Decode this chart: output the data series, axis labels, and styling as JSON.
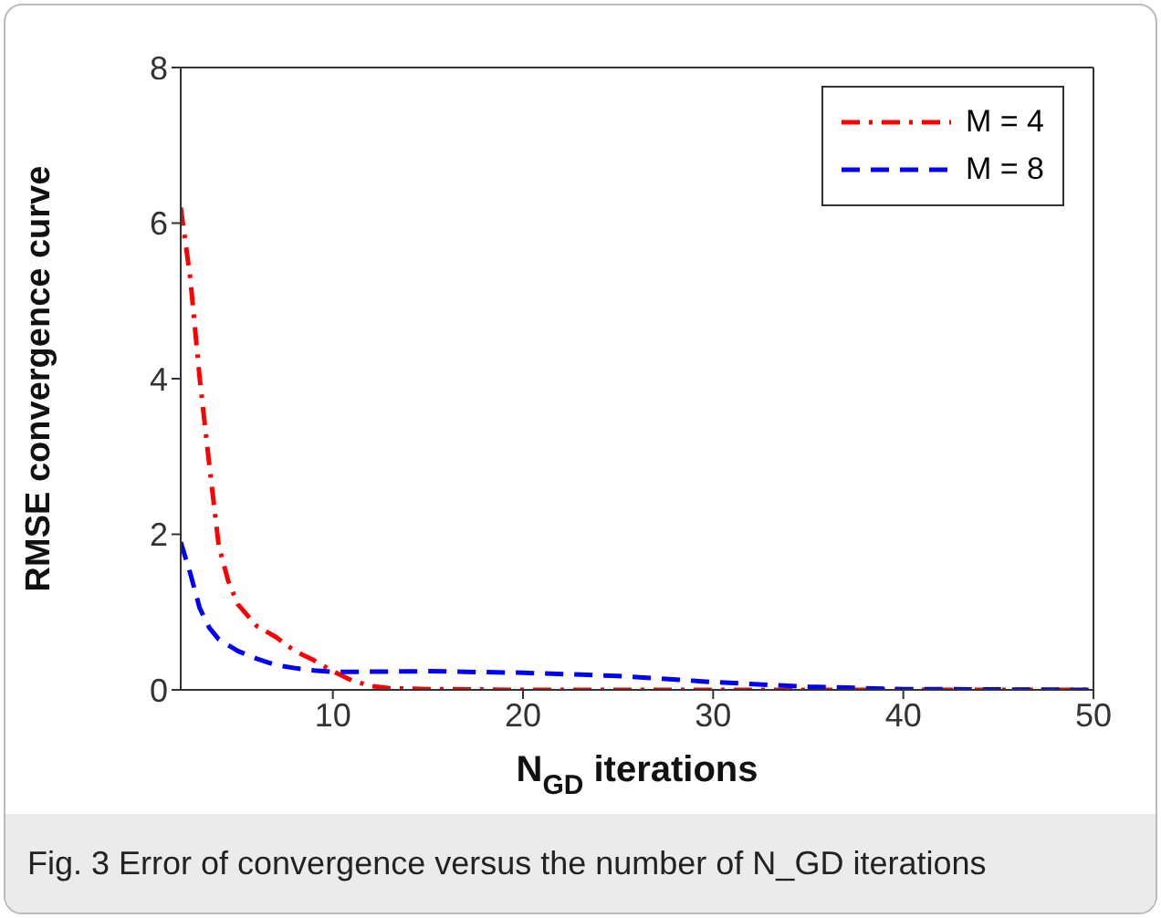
{
  "chart_data": {
    "type": "line",
    "xlabel": "N$_{GD}$ iterations",
    "ylabel": "RMSE convergence curve",
    "annotations": [
      "Fig. 3 Error of convergence versus the number of N_GD iterations"
    ],
    "xlim": [
      2,
      50
    ],
    "xticks": [
      10,
      20,
      30,
      40,
      50
    ],
    "ylim": [
      0,
      8
    ],
    "yticks": [
      0,
      2,
      4,
      6,
      8
    ],
    "grid": false,
    "legend": "top right",
    "marker": "none",
    "series": [
      {
        "name": "M = 4",
        "color": "#ff0000",
        "line_style": "dashdot",
        "x": [
          2,
          2.5,
          3,
          3.5,
          4,
          4.5,
          5,
          6,
          7,
          8,
          9,
          10,
          11,
          12,
          13,
          15,
          20,
          30,
          40,
          50
        ],
        "values": [
          6.2,
          5.3,
          4.0,
          2.9,
          1.85,
          1.4,
          1.1,
          0.82,
          0.68,
          0.5,
          0.38,
          0.24,
          0.12,
          0.05,
          0.02,
          0.01,
          0,
          0,
          0,
          0
        ]
      },
      {
        "name": "M = 8",
        "color": "#0000ff",
        "line_style": "dashed",
        "x": [
          2,
          2.5,
          3,
          3.5,
          4,
          5,
          6,
          7,
          8,
          9,
          10,
          15,
          20,
          25,
          30,
          35,
          40,
          50
        ],
        "values": [
          1.9,
          1.5,
          1.05,
          0.8,
          0.65,
          0.5,
          0.4,
          0.32,
          0.28,
          0.25,
          0.23,
          0.24,
          0.22,
          0.18,
          0.1,
          0.04,
          0.01,
          0
        ]
      }
    ]
  }
}
